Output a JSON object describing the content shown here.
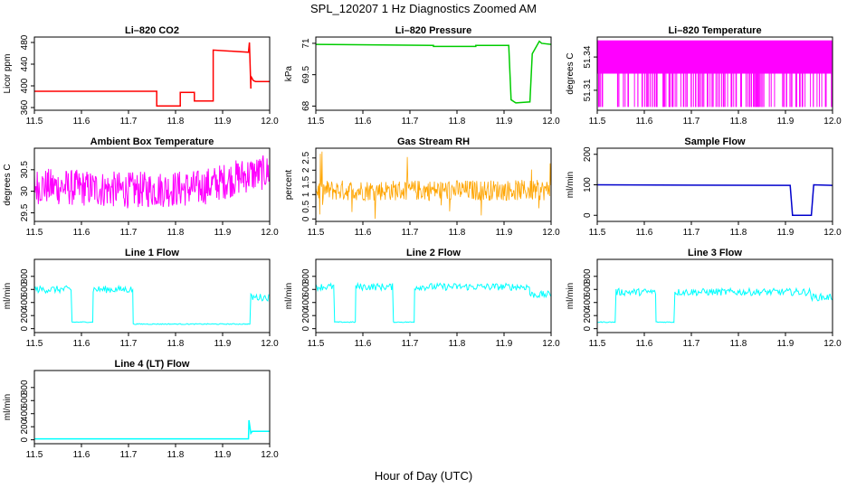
{
  "figure": {
    "title": "SPL_120207  1 Hz Diagnostics Zoomed AM",
    "xlabel": "Hour of Day (UTC)"
  },
  "chart_data": [
    {
      "type": "line",
      "title": "Li–820 CO2",
      "ylabel": "Licor ppm",
      "color": "#ff0000",
      "xlim": [
        11.5,
        12.0
      ],
      "ylim": [
        355,
        490
      ],
      "yticks": [
        360,
        400,
        440,
        480
      ],
      "xticks": [
        11.5,
        11.6,
        11.7,
        11.8,
        11.9,
        12.0
      ],
      "x": [
        11.5,
        11.76,
        11.76,
        11.81,
        11.81,
        11.84,
        11.84,
        11.88,
        11.88,
        11.955,
        11.957,
        11.96,
        11.96,
        11.965,
        11.97,
        12.0
      ],
      "y": [
        390,
        390,
        363,
        363,
        388,
        388,
        372,
        372,
        466,
        462,
        480,
        395,
        418,
        410,
        408,
        408
      ]
    },
    {
      "type": "line",
      "title": "Li–820 Pressure",
      "ylabel": "kPa",
      "color": "#00cc00",
      "xlim": [
        11.5,
        12.0
      ],
      "ylim": [
        67.8,
        71.3
      ],
      "yticks": [
        68.0,
        69.5,
        71.0
      ],
      "xticks": [
        11.5,
        11.6,
        11.7,
        11.8,
        11.9,
        12.0
      ],
      "x": [
        11.5,
        11.75,
        11.75,
        11.84,
        11.84,
        11.91,
        11.915,
        11.925,
        11.955,
        11.96,
        11.975,
        11.98,
        12.0
      ],
      "y": [
        70.95,
        70.9,
        70.85,
        70.85,
        70.9,
        70.9,
        68.3,
        68.15,
        68.2,
        70.5,
        71.1,
        71.0,
        70.95
      ]
    },
    {
      "type": "line",
      "title": "Li–820 Temperature",
      "ylabel": "degrees C",
      "color": "#ff00ff",
      "xlim": [
        11.5,
        12.0
      ],
      "ylim": [
        51.292,
        51.358
      ],
      "yticks": [
        51.31,
        51.34
      ],
      "xticks": [
        11.5,
        11.6,
        11.7,
        11.8,
        11.9,
        12.0
      ],
      "band": [
        51.325,
        51.355
      ],
      "low": 51.295,
      "spikes": 150
    },
    {
      "type": "line",
      "title": "Ambient Box Temperature",
      "ylabel": "degrees C",
      "color": "#ff00ff",
      "xlim": [
        11.5,
        12.0
      ],
      "ylim": [
        29.3,
        31.0
      ],
      "yticks": [
        29.5,
        30.0,
        30.5
      ],
      "xticks": [
        11.5,
        11.6,
        11.7,
        11.8,
        11.9,
        12.0
      ],
      "x": [
        11.5,
        11.7,
        11.85,
        11.9,
        11.95,
        12.0
      ],
      "lower": [
        29.7,
        29.6,
        29.65,
        29.8,
        29.95,
        30.05
      ],
      "upper": [
        30.55,
        30.45,
        30.5,
        30.65,
        30.8,
        30.85
      ]
    },
    {
      "type": "line",
      "title": "Gas Stream RH",
      "ylabel": "percent",
      "color": "#ffa500",
      "xlim": [
        11.5,
        12.0
      ],
      "ylim": [
        -0.1,
        2.9
      ],
      "yticks": [
        0.0,
        0.5,
        1.0,
        1.5,
        2.0,
        2.5
      ],
      "xticks": [
        11.5,
        11.6,
        11.7,
        11.8,
        11.9,
        12.0
      ],
      "band": [
        0.75,
        1.6
      ],
      "min": 0.0,
      "max": 2.8
    },
    {
      "type": "line",
      "title": "Sample Flow",
      "ylabel": "ml/min",
      "color": "#0000cc",
      "xlim": [
        11.5,
        12.0
      ],
      "ylim": [
        -20,
        220
      ],
      "yticks": [
        0,
        100,
        200
      ],
      "xticks": [
        11.5,
        11.6,
        11.7,
        11.8,
        11.9,
        12.0
      ],
      "x": [
        11.5,
        11.91,
        11.915,
        11.955,
        11.96,
        12.0
      ],
      "y": [
        100,
        98,
        0,
        0,
        100,
        98
      ]
    },
    {
      "type": "line",
      "title": "Line 1 Flow",
      "ylabel": "ml/min",
      "color": "#00ffff",
      "xlim": [
        11.5,
        12.0
      ],
      "ylim": [
        -60,
        1060
      ],
      "yticks": [
        0,
        200,
        400,
        600,
        800
      ],
      "xticks": [
        11.5,
        11.6,
        11.7,
        11.8,
        11.9,
        12.0
      ],
      "segments": [
        [
          11.5,
          11.58,
          600
        ],
        [
          11.58,
          11.625,
          100
        ],
        [
          11.625,
          11.71,
          600
        ],
        [
          11.71,
          11.96,
          70
        ],
        [
          11.96,
          12.0,
          480
        ]
      ]
    },
    {
      "type": "line",
      "title": "Line 2 Flow",
      "ylabel": "ml/min",
      "color": "#00ffff",
      "xlim": [
        11.5,
        12.0
      ],
      "ylim": [
        -60,
        1060
      ],
      "yticks": [
        0,
        200,
        400,
        600,
        800
      ],
      "xticks": [
        11.5,
        11.6,
        11.7,
        11.8,
        11.9,
        12.0
      ],
      "segments": [
        [
          11.5,
          11.54,
          640
        ],
        [
          11.54,
          11.585,
          100
        ],
        [
          11.585,
          11.665,
          640
        ],
        [
          11.665,
          11.71,
          100
        ],
        [
          11.71,
          11.955,
          640
        ],
        [
          11.955,
          12.0,
          520
        ]
      ]
    },
    {
      "type": "line",
      "title": "Line 3 Flow",
      "ylabel": "ml/min",
      "color": "#00ffff",
      "xlim": [
        11.5,
        12.0
      ],
      "ylim": [
        -60,
        1060
      ],
      "yticks": [
        0,
        200,
        400,
        600,
        800
      ],
      "xticks": [
        11.5,
        11.6,
        11.7,
        11.8,
        11.9,
        12.0
      ],
      "segments": [
        [
          11.5,
          11.54,
          100
        ],
        [
          11.54,
          11.625,
          560
        ],
        [
          11.625,
          11.665,
          100
        ],
        [
          11.665,
          11.955,
          560
        ],
        [
          11.955,
          12.0,
          480
        ]
      ]
    },
    {
      "type": "line",
      "title": "Line 4 (LT) Flow",
      "ylabel": "ml/min",
      "color": "#00ffff",
      "xlim": [
        11.5,
        12.0
      ],
      "ylim": [
        -60,
        1060
      ],
      "yticks": [
        0,
        200,
        400,
        600,
        800
      ],
      "xticks": [
        11.5,
        11.6,
        11.7,
        11.8,
        11.9,
        12.0
      ],
      "x": [
        11.5,
        11.955,
        11.956,
        11.96,
        11.963,
        12.0
      ],
      "y": [
        15,
        15,
        300,
        100,
        130,
        130
      ]
    }
  ]
}
